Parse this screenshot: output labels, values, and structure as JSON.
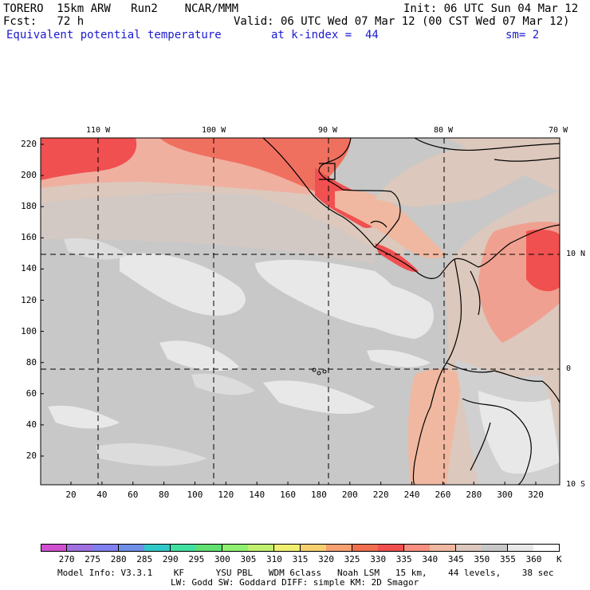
{
  "header": {
    "model": "TORERO  15km ARW   Run2    NCAR/MMM",
    "init": "Init: 06 UTC Sun 04 Mar 12",
    "fcst": "Fcst:   72 h",
    "valid": "Valid: 06 UTC Wed 07 Mar 12 (00 CST Wed 07 Mar 12)",
    "field": "Equivalent potential temperature",
    "level": "at k-index =  44",
    "smooth": "sm= 2"
  },
  "map": {
    "lon_labels": [
      "110 W",
      "100 W",
      "90 W",
      "80 W",
      "70 W"
    ],
    "lat_labels": [
      "10 N",
      "0",
      "10 S"
    ],
    "y_ticks": [
      "220",
      "200",
      "180",
      "160",
      "140",
      "120",
      "100",
      "80",
      "60",
      "40",
      "20"
    ],
    "x_ticks": [
      "20",
      "40",
      "60",
      "80",
      "100",
      "120",
      "140",
      "160",
      "180",
      "200",
      "220",
      "240",
      "260",
      "280",
      "300",
      "320"
    ]
  },
  "colorbar": {
    "labels": [
      "270",
      "275",
      "280",
      "285",
      "290",
      "295",
      "300",
      "305",
      "310",
      "315",
      "320",
      "325",
      "330",
      "335",
      "340",
      "345",
      "350",
      "355",
      "360"
    ],
    "unit": "K",
    "colors": [
      "#d050d0",
      "#a070e0",
      "#8080f0",
      "#7090e8",
      "#30c8c8",
      "#40e0a0",
      "#60e070",
      "#90f070",
      "#c0f070",
      "#f0f070",
      "#f8d070",
      "#f8a070",
      "#f07050",
      "#f05050",
      "#f89080",
      "#f0b8a0",
      "#dcc8bc",
      "#c8c8c8",
      "#e8e8e8",
      "#ffffff"
    ]
  },
  "footer": {
    "line1": "Model Info: V3.3.1    KF      YSU PBL   WDM 6class   Noah LSM   15 km,    44 levels,    38 sec",
    "line2": "LW: Godd SW: Goddard DIFF: simple KM: 2D Smagor"
  }
}
